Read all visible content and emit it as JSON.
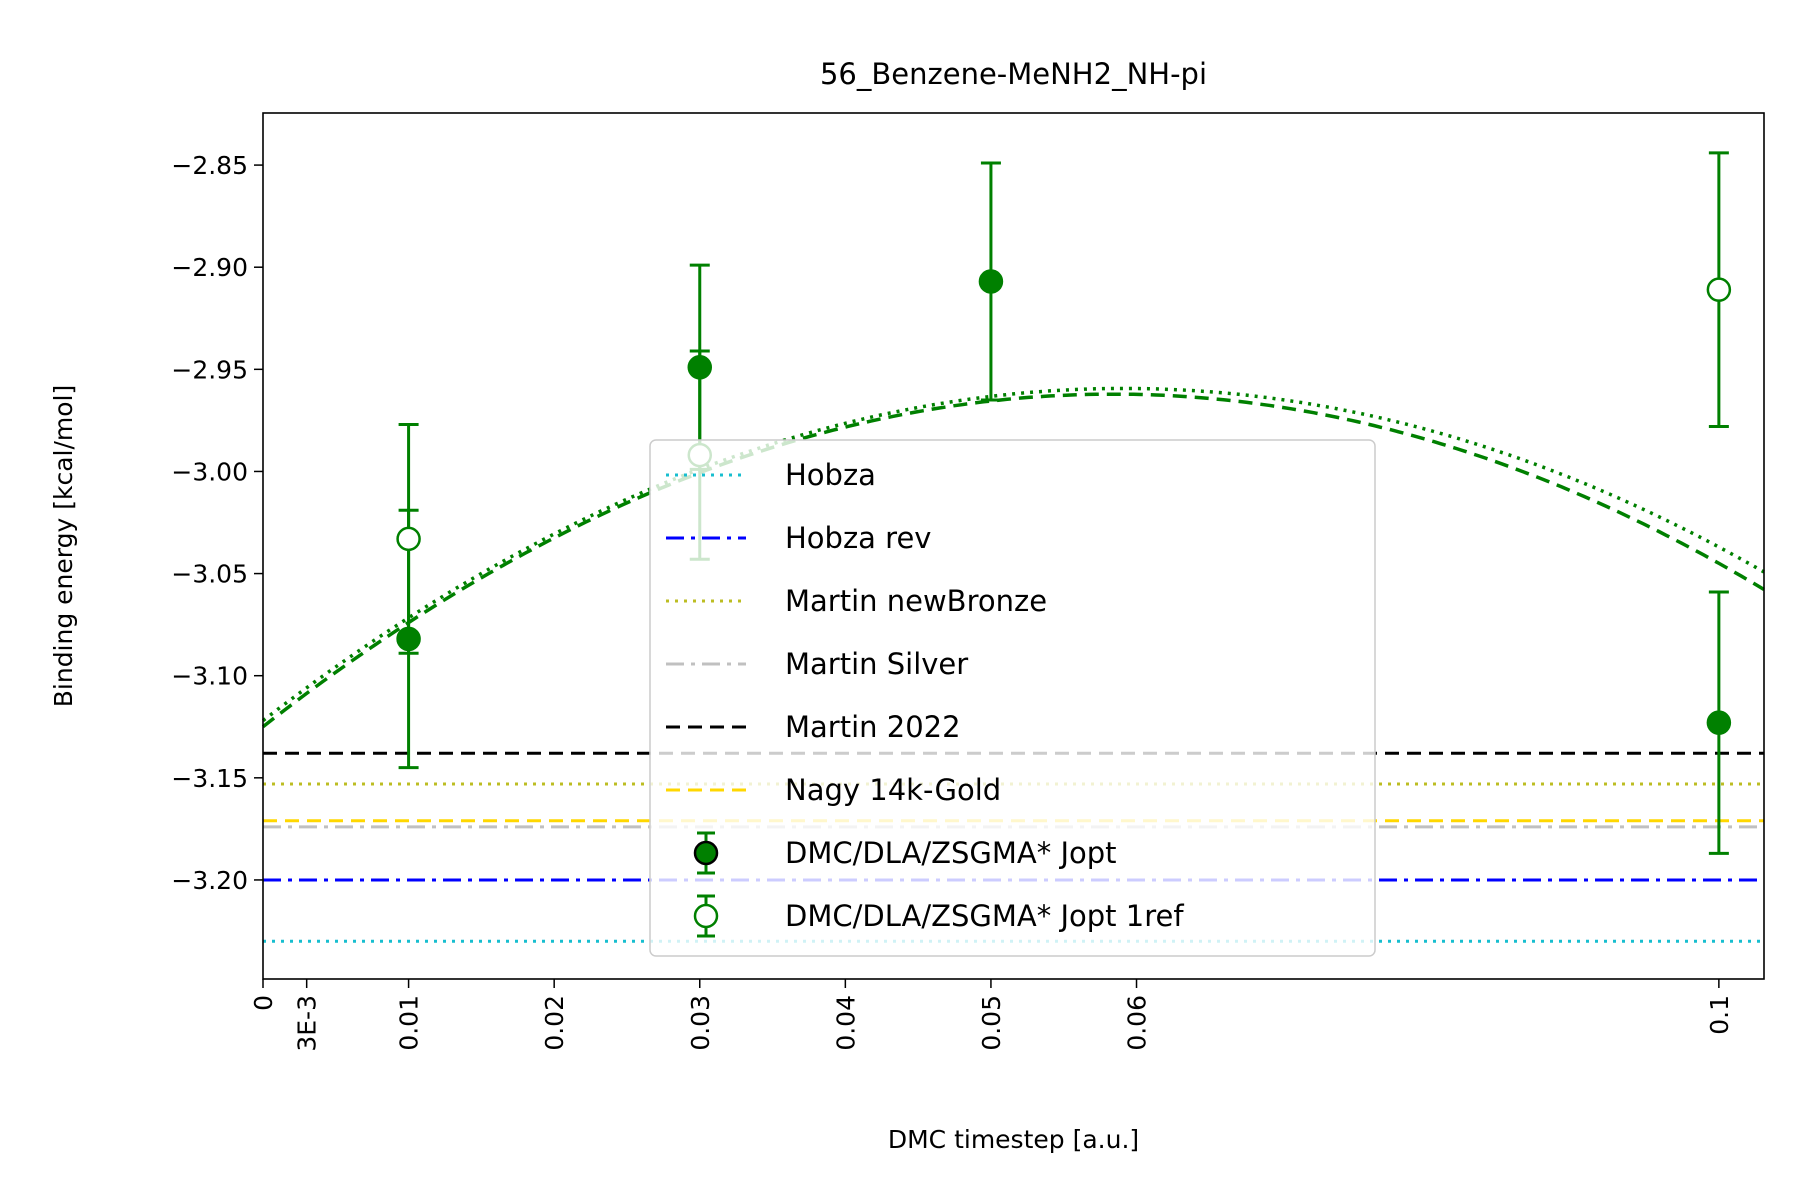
{
  "chart_data": {
    "type": "line",
    "title": "56_Benzene-MeNH2_NH-pi",
    "xlabel": "DMC timestep [a.u.]",
    "ylabel": "Binding energy [kcal/mol]",
    "xlim": [
      0,
      0.1031
    ],
    "ylim": [
      -3.2485,
      -2.8245
    ],
    "x_ticks": [
      {
        "value": 0,
        "label": "0"
      },
      {
        "value": 0.003,
        "label": "3E-3"
      },
      {
        "value": 0.01,
        "label": "0.01"
      },
      {
        "value": 0.02,
        "label": "0.02"
      },
      {
        "value": 0.03,
        "label": "0.03"
      },
      {
        "value": 0.04,
        "label": "0.04"
      },
      {
        "value": 0.05,
        "label": "0.05"
      },
      {
        "value": 0.06,
        "label": "0.06"
      },
      {
        "value": 0.1,
        "label": "0.1"
      }
    ],
    "y_ticks": [
      {
        "value": -2.85,
        "label": "−2.85"
      },
      {
        "value": -2.9,
        "label": "−2.90"
      },
      {
        "value": -2.95,
        "label": "−2.95"
      },
      {
        "value": -3.0,
        "label": "−3.00"
      },
      {
        "value": -3.05,
        "label": "−3.05"
      },
      {
        "value": -3.1,
        "label": "−3.10"
      },
      {
        "value": -3.15,
        "label": "−3.15"
      },
      {
        "value": -3.2,
        "label": "−3.20"
      }
    ],
    "grid": false,
    "legend_position": "lower-center",
    "reference_lines": [
      {
        "name": "Hobza",
        "value": -3.23,
        "color": "#17becf",
        "style": "dotted"
      },
      {
        "name": "Hobza rev",
        "value": -3.2,
        "color": "#0000ff",
        "style": "dashdot"
      },
      {
        "name": "Martin newBronze",
        "value": -3.153,
        "color": "#bcbd22",
        "style": "dotted"
      },
      {
        "name": "Martin Silver",
        "value": -3.174,
        "color": "#c0c0c0",
        "style": "dashdot"
      },
      {
        "name": "Martin 2022",
        "value": -3.138,
        "color": "#000000",
        "style": "dashed"
      },
      {
        "name": "Nagy 14k-Gold",
        "value": -3.171,
        "color": "#ffd700",
        "style": "dashed"
      }
    ],
    "series": [
      {
        "name": "DMC/DLA/ZSGMA* Jopt",
        "color": "#008000",
        "marker": "filled-circle",
        "points": [
          {
            "x": 0.01,
            "y": -3.082,
            "err": 0.063
          },
          {
            "x": 0.03,
            "y": -2.949,
            "err": 0.05
          },
          {
            "x": 0.05,
            "y": -2.907,
            "err": 0.058
          },
          {
            "x": 0.1,
            "y": -3.123,
            "err": 0.064
          }
        ],
        "fit": {
          "style": "dashed",
          "coeffs": [
            -3.125,
            5.58,
            -47.8
          ]
        }
      },
      {
        "name": "DMC/DLA/ZSGMA* Jopt 1ref",
        "color": "#008000",
        "marker": "open-circle",
        "points": [
          {
            "x": 0.01,
            "y": -3.033,
            "err": 0.056
          },
          {
            "x": 0.03,
            "y": -2.992,
            "err": 0.051
          },
          {
            "x": 0.1,
            "y": -2.911,
            "err": 0.067
          }
        ],
        "fit": {
          "style": "dotted",
          "coeffs": [
            -3.122,
            5.5,
            -46.5
          ]
        }
      }
    ]
  }
}
